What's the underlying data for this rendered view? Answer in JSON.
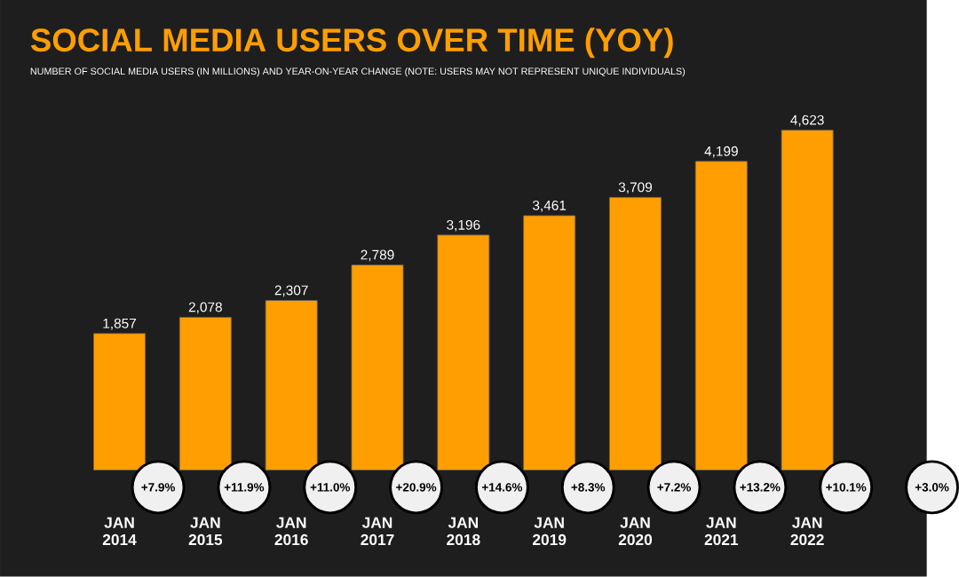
{
  "chart_data": {
    "type": "bar",
    "title": "SOCIAL MEDIA USERS OVER TIME (YOY)",
    "subtitle": "NUMBER OF SOCIAL MEDIA USERS (IN MILLIONS) AND YEAR-ON-YEAR CHANGE (NOTE: USERS MAY NOT REPRESENT UNIQUE INDIVIDUALS)",
    "categories": [
      "JAN 2014",
      "JAN 2015",
      "JAN 2016",
      "JAN 2017",
      "JAN 2018",
      "JAN 2019",
      "JAN 2020",
      "JAN 2021",
      "JAN 2022"
    ],
    "values": [
      1857,
      2078,
      2307,
      2789,
      3196,
      3461,
      3709,
      4199,
      4623
    ],
    "value_labels": [
      "1,857",
      "2,078",
      "2,307",
      "2,789",
      "3,196",
      "3,461",
      "3,709",
      "4,199",
      "4,623"
    ],
    "color": "#ff9e00",
    "tick_labels": "x",
    "annotations": [
      "+7.9%",
      "+11.9%",
      "+11.0%",
      "+20.9%",
      "+14.6%",
      "+8.3%",
      "+7.2%",
      "+13.2%",
      "+10.1%",
      "+3.0%"
    ]
  }
}
